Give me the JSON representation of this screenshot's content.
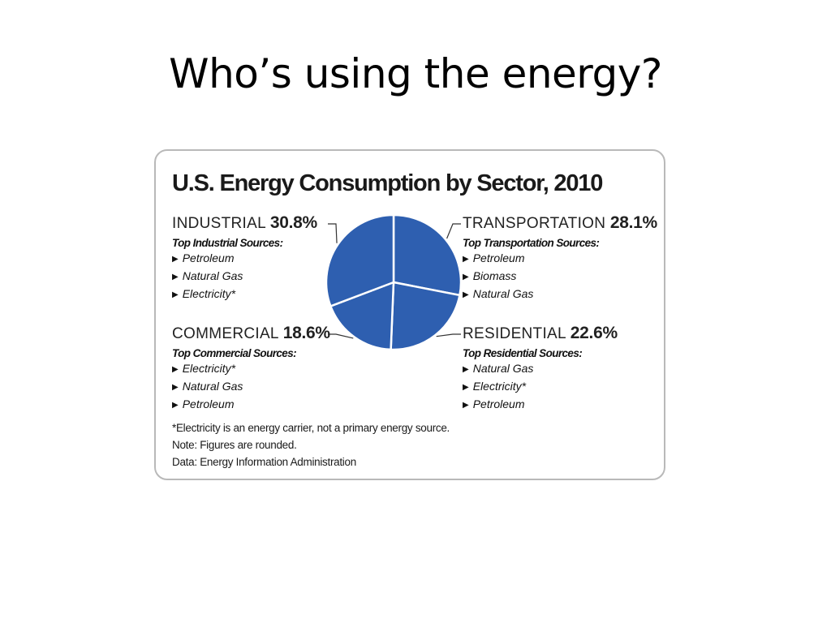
{
  "slide": {
    "title": "Who’s using the energy?"
  },
  "chart_data": {
    "type": "pie",
    "title": "U.S. Energy Consumption by Sector, 2010",
    "slices": [
      {
        "name": "TRANSPORTATION",
        "label": "28.1%",
        "value": 28.1,
        "color": "#2e5fb0",
        "sources_label": "Top Transportation Sources:",
        "sources": [
          "Petroleum",
          "Biomass",
          "Natural Gas"
        ]
      },
      {
        "name": "RESIDENTIAL",
        "label": "22.6%",
        "value": 22.6,
        "color": "#2e5fb0",
        "sources_label": "Top Residential Sources:",
        "sources": [
          "Natural Gas",
          "Electricity*",
          "Petroleum"
        ]
      },
      {
        "name": "COMMERCIAL",
        "label": "18.6%",
        "value": 18.6,
        "color": "#2e5fb0",
        "sources_label": "Top Commercial Sources:",
        "sources": [
          "Electricity*",
          "Natural Gas",
          "Petroleum"
        ]
      },
      {
        "name": "INDUSTRIAL",
        "label": "30.8%",
        "value": 30.8,
        "color": "#2e5fb0",
        "sources_label": "Top Industrial Sources:",
        "sources": [
          "Petroleum",
          "Natural Gas",
          "Electricity*"
        ]
      }
    ],
    "slice_border_color": "#ffffff",
    "leader_line_color": "#333333",
    "notes": [
      "*Electricity is an energy carrier, not a primary energy source.",
      "Note: Figures are rounded.",
      "Data: Energy Information Administration"
    ]
  }
}
